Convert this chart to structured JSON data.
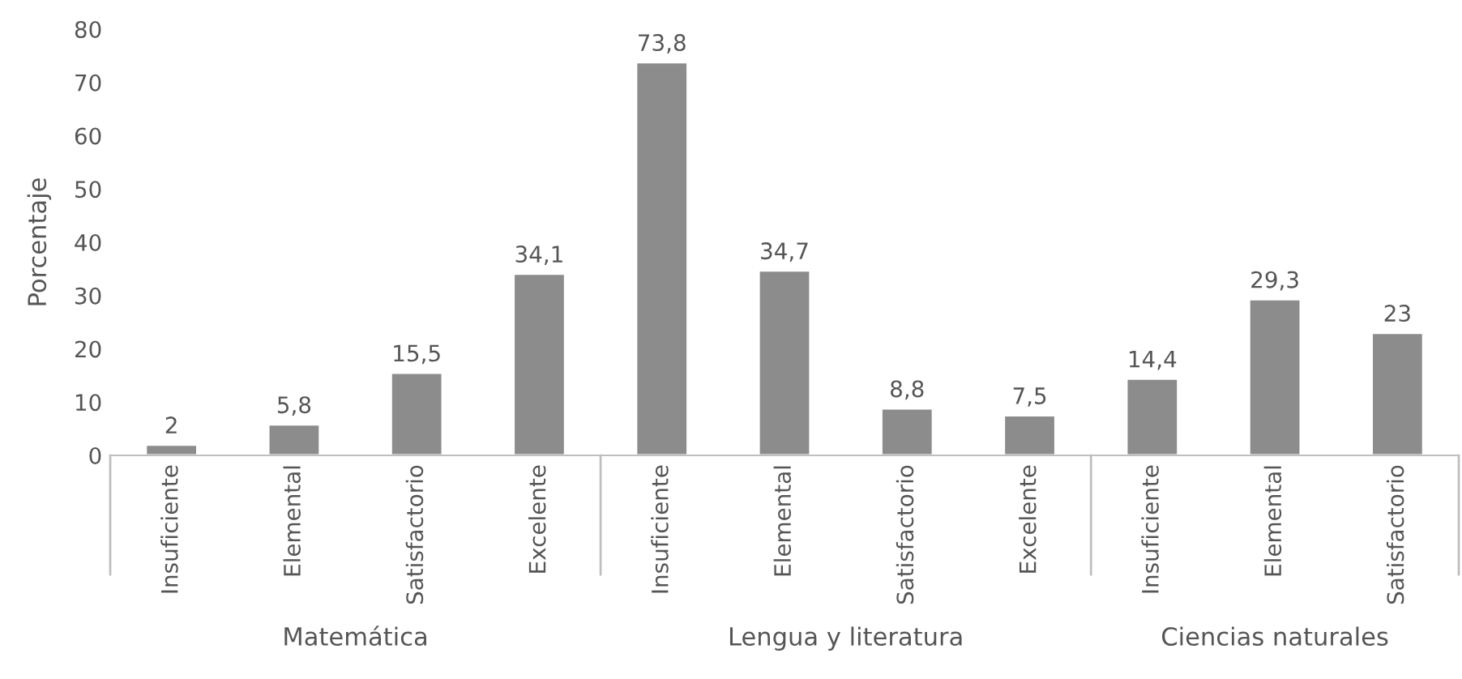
{
  "chart_data": {
    "type": "bar",
    "ylabel": "Porcentaje",
    "categories": [
      "Insuficiente",
      "Elemental",
      "Satisfactorio",
      "Excelente",
      "Insuficiente",
      "Elemental",
      "Satisfactorio",
      "Excelente",
      "Insuficiente",
      "Elemental",
      "Satisfactorio"
    ],
    "values": [
      2,
      5.8,
      15.5,
      34.1,
      73.8,
      34.7,
      8.8,
      7.5,
      14.4,
      29.3,
      23
    ],
    "value_labels": [
      "2",
      "5,8",
      "15,5",
      "34,1",
      "73,8",
      "34,7",
      "8,8",
      "7,5",
      "14,4",
      "29,3",
      "23"
    ],
    "color": "#8c8c8c",
    "ylim": [
      0,
      80
    ],
    "yticks": [
      0,
      10,
      20,
      30,
      40,
      50,
      60,
      70,
      80
    ],
    "annotations": [
      "Matemática",
      "Lengua y literatura",
      "Ciencias naturales"
    ]
  }
}
